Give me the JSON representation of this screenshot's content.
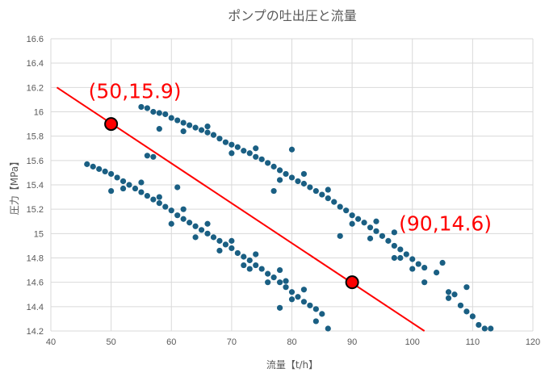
{
  "chart_data": {
    "type": "scatter",
    "title": "ポンプの吐出圧と流量",
    "xlabel": "流量【t/h】",
    "ylabel": "圧力【MPa】",
    "xlim": [
      40,
      120
    ],
    "ylim": [
      14.2,
      16.6
    ],
    "x_ticks": [
      "40",
      "50",
      "60",
      "70",
      "80",
      "90",
      "100",
      "110",
      "120"
    ],
    "y_ticks": [
      "14.2",
      "14.4",
      "14.6",
      "14.8",
      "15",
      "15.2",
      "15.4",
      "15.6",
      "15.8",
      "16",
      "16.2",
      "16.4",
      "16.6"
    ],
    "grid": true,
    "legend": "none",
    "marker_color": "#1a5f83",
    "fit_line": {
      "x1": 41,
      "y1": 16.2,
      "x2": 102,
      "y2": 14.2,
      "color": "#ff0000"
    },
    "highlight_points": [
      {
        "x": 50,
        "y": 15.9,
        "label": "(50,15.9)",
        "fill": "#ff0000"
      },
      {
        "x": 90,
        "y": 14.6,
        "label": "(90,14.6)",
        "fill": "#ff0000"
      }
    ],
    "series": [
      {
        "values": [
          [
            55,
            16.04
          ],
          [
            56,
            16.03
          ],
          [
            57,
            16.0
          ],
          [
            58,
            15.99
          ],
          [
            59,
            15.98
          ],
          [
            60,
            15.95
          ],
          [
            61,
            15.93
          ],
          [
            62,
            15.91
          ],
          [
            63,
            15.89
          ],
          [
            64,
            15.87
          ],
          [
            65,
            15.85
          ],
          [
            66,
            15.83
          ],
          [
            67,
            15.81
          ],
          [
            68,
            15.78
          ],
          [
            69,
            15.75
          ],
          [
            70,
            15.73
          ],
          [
            71,
            15.71
          ],
          [
            72,
            15.68
          ],
          [
            73,
            15.66
          ],
          [
            74,
            15.63
          ],
          [
            75,
            15.61
          ],
          [
            76,
            15.58
          ],
          [
            77,
            15.55
          ],
          [
            78,
            15.52
          ],
          [
            79,
            15.49
          ],
          [
            80,
            15.46
          ],
          [
            81,
            15.43
          ],
          [
            82,
            15.41
          ],
          [
            83,
            15.38
          ],
          [
            84,
            15.35
          ],
          [
            85,
            15.32
          ],
          [
            86,
            15.29
          ],
          [
            87,
            15.26
          ],
          [
            88,
            15.22
          ],
          [
            89,
            15.19
          ],
          [
            90,
            15.15
          ],
          [
            91,
            15.12
          ],
          [
            92,
            15.09
          ],
          [
            93,
            15.05
          ],
          [
            94,
            15.02
          ],
          [
            95,
            14.98
          ],
          [
            96,
            14.94
          ],
          [
            97,
            14.9
          ],
          [
            98,
            14.87
          ],
          [
            99,
            14.83
          ],
          [
            100,
            14.79
          ],
          [
            101,
            14.75
          ],
          [
            102,
            14.72
          ],
          [
            58,
            15.86
          ],
          [
            62,
            15.84
          ],
          [
            66,
            15.88
          ],
          [
            70,
            15.66
          ],
          [
            74,
            15.7
          ],
          [
            78,
            15.44
          ],
          [
            82,
            15.49
          ],
          [
            86,
            15.36
          ],
          [
            90,
            15.08
          ],
          [
            94,
            15.1
          ],
          [
            98,
            14.8
          ],
          [
            80,
            15.69
          ],
          [
            77,
            15.35
          ],
          [
            88,
            14.98
          ],
          [
            93,
            14.96
          ],
          [
            97,
            15.01
          ],
          [
            104,
            14.68
          ],
          [
            105,
            14.76
          ],
          [
            106,
            14.52
          ],
          [
            106,
            14.47
          ],
          [
            107,
            14.5
          ],
          [
            108,
            14.41
          ],
          [
            109,
            14.36
          ],
          [
            109,
            14.56
          ],
          [
            110,
            14.32
          ],
          [
            111,
            14.25
          ],
          [
            112,
            14.22
          ],
          [
            113,
            14.22
          ],
          [
            100,
            14.71
          ],
          [
            102,
            14.6
          ],
          [
            97,
            14.8
          ]
        ]
      },
      {
        "values": [
          [
            46,
            15.57
          ],
          [
            47,
            15.55
          ],
          [
            48,
            15.53
          ],
          [
            49,
            15.51
          ],
          [
            50,
            15.49
          ],
          [
            51,
            15.46
          ],
          [
            52,
            15.43
          ],
          [
            53,
            15.4
          ],
          [
            54,
            15.37
          ],
          [
            55,
            15.34
          ],
          [
            56,
            15.31
          ],
          [
            57,
            15.28
          ],
          [
            58,
            15.25
          ],
          [
            59,
            15.22
          ],
          [
            60,
            15.19
          ],
          [
            61,
            15.15
          ],
          [
            62,
            15.12
          ],
          [
            63,
            15.09
          ],
          [
            64,
            15.06
          ],
          [
            65,
            15.03
          ],
          [
            66,
            15.0
          ],
          [
            67,
            14.97
          ],
          [
            68,
            14.94
          ],
          [
            69,
            14.91
          ],
          [
            70,
            14.88
          ],
          [
            71,
            14.84
          ],
          [
            72,
            14.81
          ],
          [
            73,
            14.78
          ],
          [
            74,
            14.74
          ],
          [
            75,
            14.71
          ],
          [
            76,
            14.67
          ],
          [
            77,
            14.64
          ],
          [
            78,
            14.6
          ],
          [
            79,
            14.56
          ],
          [
            80,
            14.52
          ],
          [
            81,
            14.48
          ],
          [
            82,
            14.44
          ],
          [
            83,
            14.41
          ],
          [
            84,
            14.38
          ],
          [
            85,
            14.34
          ],
          [
            52,
            15.37
          ],
          [
            55,
            15.42
          ],
          [
            58,
            15.3
          ],
          [
            60,
            15.08
          ],
          [
            62,
            15.2
          ],
          [
            64,
            14.97
          ],
          [
            66,
            15.08
          ],
          [
            68,
            14.86
          ],
          [
            70,
            14.94
          ],
          [
            72,
            14.74
          ],
          [
            74,
            14.83
          ],
          [
            76,
            14.6
          ],
          [
            78,
            14.7
          ],
          [
            80,
            14.46
          ],
          [
            82,
            14.54
          ],
          [
            56,
            15.64
          ],
          [
            57,
            15.63
          ],
          [
            50,
            15.35
          ],
          [
            61,
            15.38
          ],
          [
            73,
            14.71
          ],
          [
            78,
            14.39
          ],
          [
            86,
            14.22
          ],
          [
            79,
            14.61
          ],
          [
            84,
            14.28
          ]
        ]
      }
    ]
  }
}
